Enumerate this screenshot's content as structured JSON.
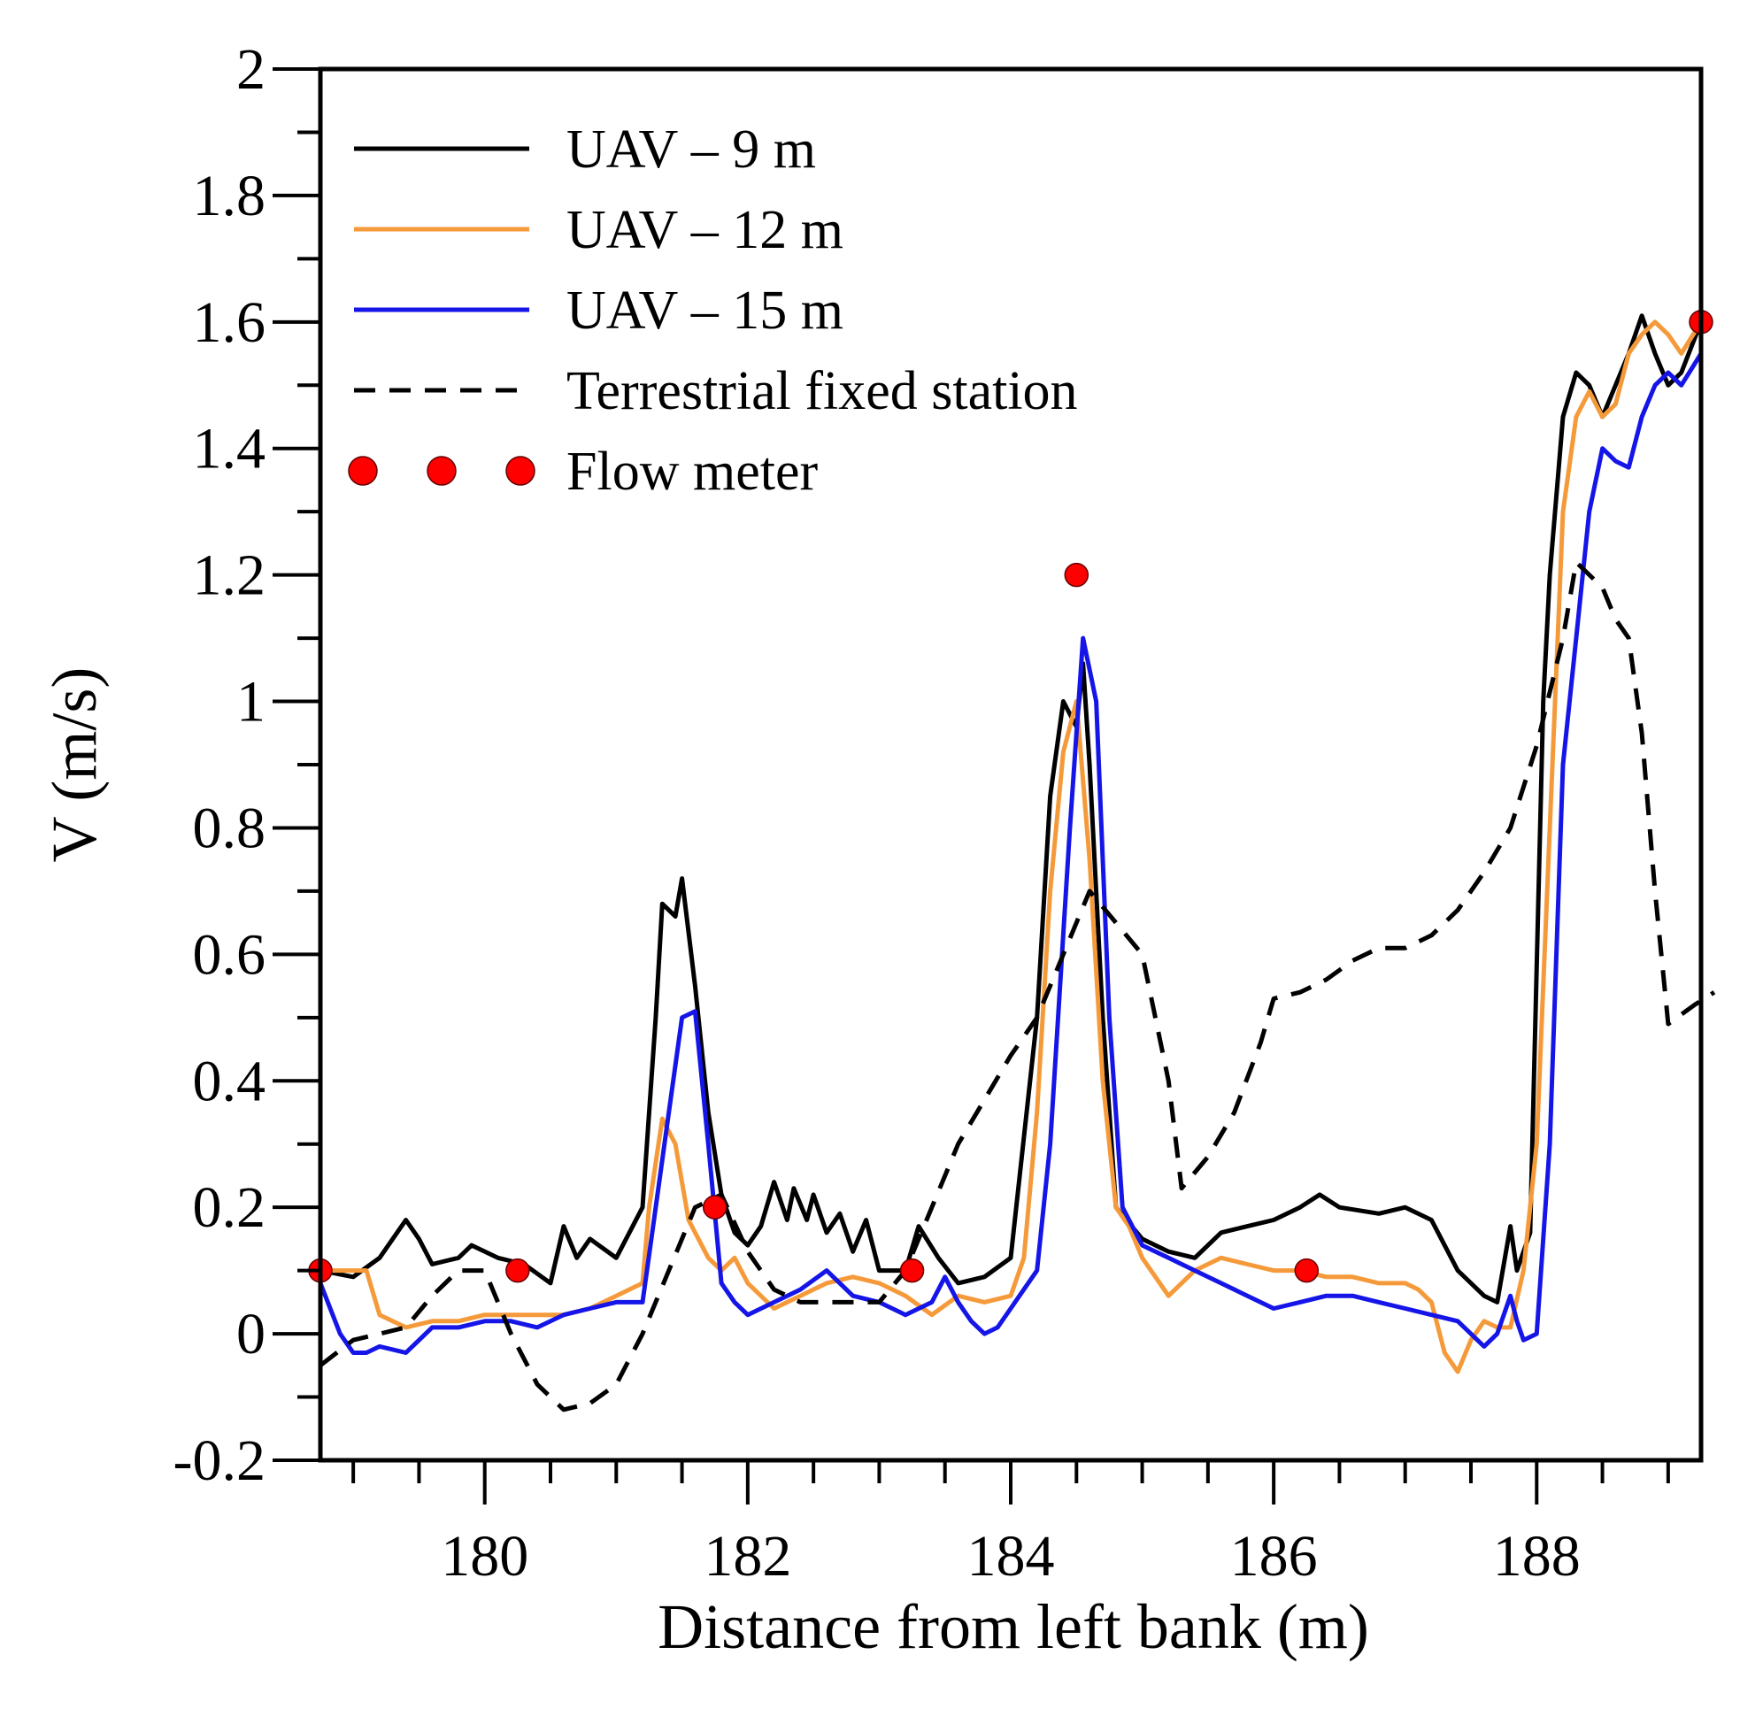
{
  "chart_data": {
    "type": "line",
    "title": "",
    "xlabel": "Distance from left bank (m)",
    "ylabel": "V (m/s)",
    "xlim": [
      178.75,
      189.25
    ],
    "ylim": [
      -0.2,
      2
    ],
    "x_ticks": [
      180,
      182,
      184,
      186,
      188
    ],
    "x_tick_labels": [
      "180",
      "182",
      "184",
      "186",
      "188"
    ],
    "x_minor_step": 0.5,
    "y_ticks": [
      -0.2,
      0,
      0.2,
      0.4,
      0.6,
      0.8,
      1,
      1.2,
      1.4,
      1.6,
      1.8,
      2
    ],
    "y_tick_labels": [
      "-0.2",
      "0",
      "0.2",
      "0.4",
      "0.6",
      "0.8",
      "1",
      "1.2",
      "1.4",
      "1.6",
      "1.8",
      "2"
    ],
    "y_minor_step": 0.1,
    "grid": false,
    "legend_position": "top-left",
    "series": [
      {
        "name": "UAV – 9 m",
        "legend_label": "UAV – 9 m",
        "color": "#000000",
        "style": "solid",
        "points": [
          [
            178.75,
            0.1
          ],
          [
            179.0,
            0.09
          ],
          [
            179.2,
            0.12
          ],
          [
            179.4,
            0.18
          ],
          [
            179.5,
            0.15
          ],
          [
            179.6,
            0.11
          ],
          [
            179.8,
            0.12
          ],
          [
            179.9,
            0.14
          ],
          [
            180.1,
            0.12
          ],
          [
            180.3,
            0.11
          ],
          [
            180.5,
            0.08
          ],
          [
            180.6,
            0.17
          ],
          [
            180.7,
            0.12
          ],
          [
            180.8,
            0.15
          ],
          [
            181.0,
            0.12
          ],
          [
            181.2,
            0.2
          ],
          [
            181.3,
            0.5
          ],
          [
            181.35,
            0.68
          ],
          [
            181.45,
            0.66
          ],
          [
            181.5,
            0.72
          ],
          [
            181.6,
            0.55
          ],
          [
            181.7,
            0.35
          ],
          [
            181.8,
            0.22
          ],
          [
            181.9,
            0.16
          ],
          [
            182.0,
            0.14
          ],
          [
            182.1,
            0.17
          ],
          [
            182.2,
            0.24
          ],
          [
            182.3,
            0.18
          ],
          [
            182.35,
            0.23
          ],
          [
            182.45,
            0.18
          ],
          [
            182.5,
            0.22
          ],
          [
            182.6,
            0.16
          ],
          [
            182.7,
            0.19
          ],
          [
            182.8,
            0.13
          ],
          [
            182.9,
            0.18
          ],
          [
            183.0,
            0.1
          ],
          [
            183.2,
            0.1
          ],
          [
            183.3,
            0.17
          ],
          [
            183.45,
            0.12
          ],
          [
            183.6,
            0.08
          ],
          [
            183.8,
            0.09
          ],
          [
            184.0,
            0.12
          ],
          [
            184.2,
            0.5
          ],
          [
            184.3,
            0.85
          ],
          [
            184.4,
            1.0
          ],
          [
            184.5,
            0.96
          ],
          [
            184.55,
            1.06
          ],
          [
            184.6,
            0.9
          ],
          [
            184.7,
            0.5
          ],
          [
            184.8,
            0.2
          ],
          [
            185.0,
            0.15
          ],
          [
            185.2,
            0.13
          ],
          [
            185.4,
            0.12
          ],
          [
            185.6,
            0.16
          ],
          [
            185.8,
            0.17
          ],
          [
            186.0,
            0.18
          ],
          [
            186.2,
            0.2
          ],
          [
            186.35,
            0.22
          ],
          [
            186.5,
            0.2
          ],
          [
            186.8,
            0.19
          ],
          [
            187.0,
            0.2
          ],
          [
            187.2,
            0.18
          ],
          [
            187.4,
            0.1
          ],
          [
            187.6,
            0.06
          ],
          [
            187.7,
            0.05
          ],
          [
            187.8,
            0.17
          ],
          [
            187.85,
            0.1
          ],
          [
            187.95,
            0.16
          ],
          [
            188.05,
            1.0
          ],
          [
            188.1,
            1.2
          ],
          [
            188.2,
            1.45
          ],
          [
            188.3,
            1.52
          ],
          [
            188.4,
            1.5
          ],
          [
            188.5,
            1.45
          ],
          [
            188.6,
            1.5
          ],
          [
            188.7,
            1.55
          ],
          [
            188.8,
            1.61
          ],
          [
            188.9,
            1.55
          ],
          [
            189.0,
            1.5
          ],
          [
            189.1,
            1.52
          ],
          [
            189.25,
            1.6
          ]
        ]
      },
      {
        "name": "UAV – 12 m",
        "legend_label": "UAV – 12 m",
        "color": "#F59A3A",
        "style": "solid",
        "points": [
          [
            178.75,
            0.1
          ],
          [
            178.9,
            0.1
          ],
          [
            179.0,
            0.1
          ],
          [
            179.1,
            0.1
          ],
          [
            179.2,
            0.03
          ],
          [
            179.4,
            0.01
          ],
          [
            179.6,
            0.02
          ],
          [
            179.8,
            0.02
          ],
          [
            180.0,
            0.03
          ],
          [
            180.2,
            0.03
          ],
          [
            180.4,
            0.03
          ],
          [
            180.6,
            0.03
          ],
          [
            180.8,
            0.04
          ],
          [
            181.0,
            0.06
          ],
          [
            181.2,
            0.08
          ],
          [
            181.25,
            0.2
          ],
          [
            181.35,
            0.34
          ],
          [
            181.45,
            0.3
          ],
          [
            181.55,
            0.18
          ],
          [
            181.7,
            0.12
          ],
          [
            181.8,
            0.1
          ],
          [
            181.9,
            0.12
          ],
          [
            182.0,
            0.08
          ],
          [
            182.2,
            0.04
          ],
          [
            182.4,
            0.06
          ],
          [
            182.6,
            0.08
          ],
          [
            182.8,
            0.09
          ],
          [
            183.0,
            0.08
          ],
          [
            183.2,
            0.06
          ],
          [
            183.4,
            0.03
          ],
          [
            183.6,
            0.06
          ],
          [
            183.8,
            0.05
          ],
          [
            184.0,
            0.06
          ],
          [
            184.1,
            0.12
          ],
          [
            184.2,
            0.35
          ],
          [
            184.3,
            0.7
          ],
          [
            184.4,
            0.92
          ],
          [
            184.5,
            1.0
          ],
          [
            184.6,
            0.75
          ],
          [
            184.7,
            0.4
          ],
          [
            184.8,
            0.2
          ],
          [
            184.9,
            0.17
          ],
          [
            185.0,
            0.12
          ],
          [
            185.2,
            0.06
          ],
          [
            185.4,
            0.1
          ],
          [
            185.6,
            0.12
          ],
          [
            185.8,
            0.11
          ],
          [
            186.0,
            0.1
          ],
          [
            186.2,
            0.1
          ],
          [
            186.4,
            0.09
          ],
          [
            186.6,
            0.09
          ],
          [
            186.8,
            0.08
          ],
          [
            187.0,
            0.08
          ],
          [
            187.1,
            0.07
          ],
          [
            187.2,
            0.05
          ],
          [
            187.3,
            -0.03
          ],
          [
            187.4,
            -0.06
          ],
          [
            187.5,
            -0.01
          ],
          [
            187.6,
            0.02
          ],
          [
            187.7,
            0.01
          ],
          [
            187.8,
            0.01
          ],
          [
            187.9,
            0.1
          ],
          [
            188.0,
            0.3
          ],
          [
            188.1,
            0.8
          ],
          [
            188.2,
            1.3
          ],
          [
            188.3,
            1.45
          ],
          [
            188.4,
            1.49
          ],
          [
            188.5,
            1.45
          ],
          [
            188.6,
            1.47
          ],
          [
            188.7,
            1.55
          ],
          [
            188.8,
            1.58
          ],
          [
            188.9,
            1.6
          ],
          [
            189.0,
            1.58
          ],
          [
            189.1,
            1.55
          ],
          [
            189.25,
            1.6
          ]
        ]
      },
      {
        "name": "UAV – 15 m",
        "legend_label": "UAV – 15 m",
        "color": "#1515E8",
        "style": "solid",
        "points": [
          [
            178.75,
            0.08
          ],
          [
            178.9,
            0.0
          ],
          [
            179.0,
            -0.03
          ],
          [
            179.1,
            -0.03
          ],
          [
            179.2,
            -0.02
          ],
          [
            179.4,
            -0.03
          ],
          [
            179.6,
            0.01
          ],
          [
            179.8,
            0.01
          ],
          [
            180.0,
            0.02
          ],
          [
            180.2,
            0.02
          ],
          [
            180.4,
            0.01
          ],
          [
            180.6,
            0.03
          ],
          [
            180.8,
            0.04
          ],
          [
            181.0,
            0.05
          ],
          [
            181.2,
            0.05
          ],
          [
            181.3,
            0.2
          ],
          [
            181.4,
            0.35
          ],
          [
            181.5,
            0.5
          ],
          [
            181.6,
            0.51
          ],
          [
            181.7,
            0.3
          ],
          [
            181.8,
            0.08
          ],
          [
            181.9,
            0.05
          ],
          [
            182.0,
            0.03
          ],
          [
            182.2,
            0.05
          ],
          [
            182.4,
            0.07
          ],
          [
            182.6,
            0.1
          ],
          [
            182.8,
            0.06
          ],
          [
            183.0,
            0.05
          ],
          [
            183.2,
            0.03
          ],
          [
            183.4,
            0.05
          ],
          [
            183.5,
            0.09
          ],
          [
            183.6,
            0.05
          ],
          [
            183.7,
            0.02
          ],
          [
            183.8,
            0.0
          ],
          [
            183.9,
            0.01
          ],
          [
            184.0,
            0.04
          ],
          [
            184.2,
            0.1
          ],
          [
            184.3,
            0.3
          ],
          [
            184.45,
            0.8
          ],
          [
            184.55,
            1.1
          ],
          [
            184.65,
            1.0
          ],
          [
            184.75,
            0.5
          ],
          [
            184.85,
            0.2
          ],
          [
            185.0,
            0.14
          ],
          [
            185.2,
            0.12
          ],
          [
            185.4,
            0.1
          ],
          [
            185.6,
            0.08
          ],
          [
            185.8,
            0.06
          ],
          [
            186.0,
            0.04
          ],
          [
            186.2,
            0.05
          ],
          [
            186.4,
            0.06
          ],
          [
            186.6,
            0.06
          ],
          [
            186.8,
            0.05
          ],
          [
            187.0,
            0.04
          ],
          [
            187.2,
            0.03
          ],
          [
            187.4,
            0.02
          ],
          [
            187.6,
            -0.02
          ],
          [
            187.7,
            0.0
          ],
          [
            187.8,
            0.06
          ],
          [
            187.85,
            0.02
          ],
          [
            187.9,
            -0.01
          ],
          [
            188.0,
            0.0
          ],
          [
            188.1,
            0.3
          ],
          [
            188.2,
            0.9
          ],
          [
            188.3,
            1.1
          ],
          [
            188.4,
            1.3
          ],
          [
            188.5,
            1.4
          ],
          [
            188.6,
            1.38
          ],
          [
            188.7,
            1.37
          ],
          [
            188.8,
            1.45
          ],
          [
            188.9,
            1.5
          ],
          [
            189.0,
            1.52
          ],
          [
            189.1,
            1.5
          ],
          [
            189.25,
            1.55
          ]
        ]
      },
      {
        "name": "Terrestrial fixed station",
        "legend_label": "Terrestrial fixed station",
        "color": "#000000",
        "style": "dashed",
        "points": [
          [
            178.75,
            -0.05
          ],
          [
            179.0,
            -0.01
          ],
          [
            179.2,
            0.0
          ],
          [
            179.4,
            0.01
          ],
          [
            179.6,
            0.06
          ],
          [
            179.8,
            0.1
          ],
          [
            180.0,
            0.1
          ],
          [
            180.2,
            0.0
          ],
          [
            180.4,
            -0.08
          ],
          [
            180.6,
            -0.12
          ],
          [
            180.8,
            -0.11
          ],
          [
            181.0,
            -0.08
          ],
          [
            181.2,
            0.0
          ],
          [
            181.4,
            0.1
          ],
          [
            181.6,
            0.2
          ],
          [
            181.8,
            0.22
          ],
          [
            182.0,
            0.13
          ],
          [
            182.2,
            0.07
          ],
          [
            182.4,
            0.05
          ],
          [
            182.6,
            0.05
          ],
          [
            182.8,
            0.05
          ],
          [
            183.0,
            0.05
          ],
          [
            183.2,
            0.1
          ],
          [
            183.4,
            0.2
          ],
          [
            183.6,
            0.3
          ],
          [
            183.8,
            0.37
          ],
          [
            184.0,
            0.44
          ],
          [
            184.2,
            0.5
          ],
          [
            184.4,
            0.6
          ],
          [
            184.6,
            0.7
          ],
          [
            184.8,
            0.65
          ],
          [
            185.0,
            0.6
          ],
          [
            185.2,
            0.4
          ],
          [
            185.3,
            0.23
          ],
          [
            185.5,
            0.28
          ],
          [
            185.7,
            0.35
          ],
          [
            185.9,
            0.46
          ],
          [
            186.0,
            0.53
          ],
          [
            186.2,
            0.54
          ],
          [
            186.4,
            0.56
          ],
          [
            186.6,
            0.59
          ],
          [
            186.8,
            0.61
          ],
          [
            187.0,
            0.61
          ],
          [
            187.2,
            0.63
          ],
          [
            187.4,
            0.67
          ],
          [
            187.6,
            0.73
          ],
          [
            187.8,
            0.8
          ],
          [
            188.0,
            0.93
          ],
          [
            188.2,
            1.1
          ],
          [
            188.3,
            1.22
          ],
          [
            188.5,
            1.18
          ],
          [
            188.6,
            1.13
          ],
          [
            188.7,
            1.1
          ],
          [
            188.8,
            0.95
          ],
          [
            188.9,
            0.7
          ],
          [
            189.0,
            0.49
          ],
          [
            189.2,
            0.52
          ],
          [
            189.35,
            0.54
          ]
        ]
      },
      {
        "name": "Flow meter",
        "legend_label": "Flow meter",
        "color": "#FF0000",
        "style": "markers",
        "points": [
          [
            178.75,
            0.1
          ],
          [
            180.25,
            0.1
          ],
          [
            181.75,
            0.2
          ],
          [
            183.25,
            0.1
          ],
          [
            184.5,
            1.2
          ],
          [
            186.25,
            0.1
          ],
          [
            189.25,
            1.6
          ]
        ]
      }
    ]
  }
}
